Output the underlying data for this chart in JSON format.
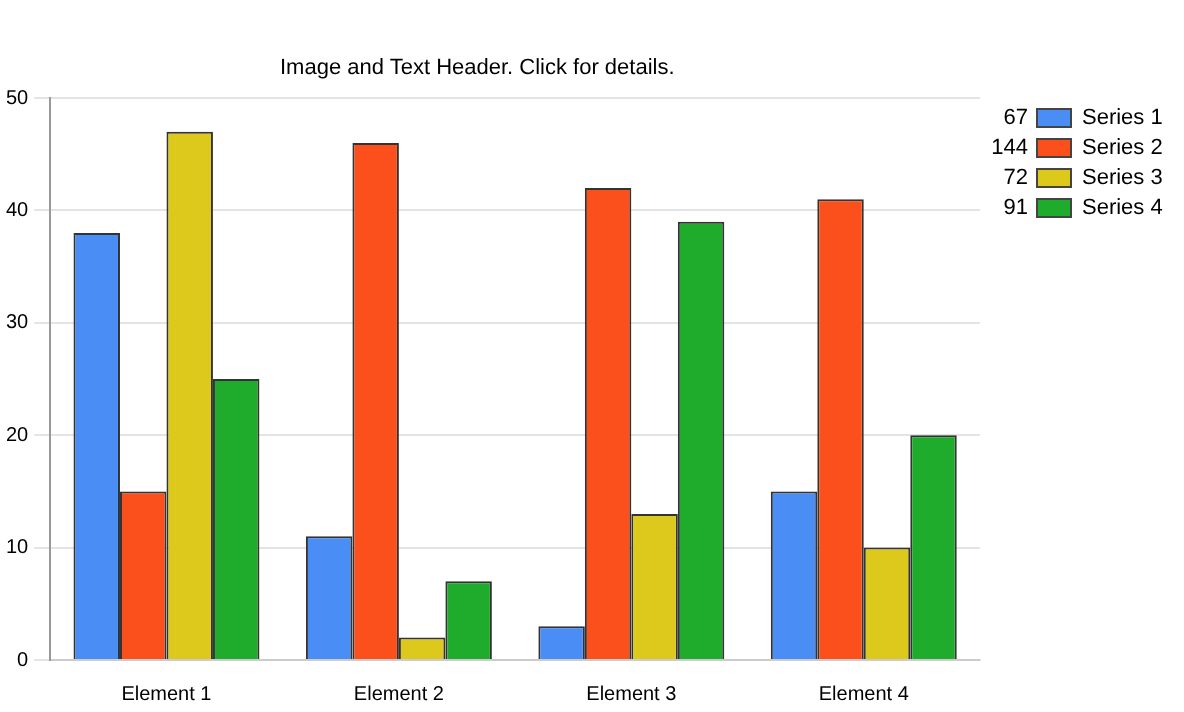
{
  "chart_data": {
    "type": "bar",
    "title": "Image and Text Header. Click for details.",
    "categories": [
      "Element 1",
      "Element 2",
      "Element 3",
      "Element 4"
    ],
    "series": [
      {
        "name": "Series 1",
        "color": "#4a8df5",
        "values": [
          38,
          11,
          3,
          15
        ]
      },
      {
        "name": "Series 2",
        "color": "#fb4f1c",
        "values": [
          15,
          46,
          42,
          41
        ]
      },
      {
        "name": "Series 3",
        "color": "#dcc91c",
        "values": [
          47,
          2,
          13,
          10
        ]
      },
      {
        "name": "Series 4",
        "color": "#1fab2c",
        "values": [
          25,
          7,
          39,
          20
        ]
      }
    ],
    "annotations": [
      "67",
      "144",
      "72",
      "91"
    ],
    "ylim": [
      0,
      50
    ],
    "yticks": [
      0,
      10,
      20,
      30,
      40,
      50
    ],
    "grid": "y",
    "legend": "top right"
  }
}
